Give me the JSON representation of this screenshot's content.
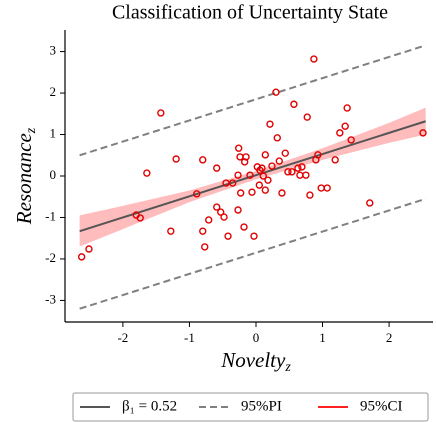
{
  "chart_data": {
    "type": "scatter_regression",
    "title": "Classification of Uncertainty State",
    "xlabel": "Novelty",
    "xlabel_sub": "z",
    "ylabel": "Resonance",
    "ylabel_sub": "z",
    "xlim": [
      -2.87,
      2.66
    ],
    "ylim": [
      -3.52,
      3.52
    ],
    "xticks": [
      -2,
      -1,
      0,
      1,
      2
    ],
    "yticks": [
      -3,
      -2,
      -1,
      0,
      1,
      2,
      3
    ],
    "points": {
      "color": "#e00000",
      "x": [
        -2.62,
        -2.51,
        -1.8,
        -1.74,
        -1.64,
        -1.43,
        -1.28,
        -1.2,
        -0.89,
        -0.8,
        -0.8,
        -0.77,
        -0.71,
        -0.59,
        -0.59,
        -0.53,
        -0.48,
        -0.45,
        -0.42,
        -0.35,
        -0.27,
        -0.27,
        -0.26,
        -0.24,
        -0.23,
        -0.18,
        -0.17,
        -0.15,
        -0.09,
        -0.06,
        -0.03,
        0.02,
        0.05,
        0.06,
        0.09,
        0.11,
        0.14,
        0.14,
        0.18,
        0.21,
        0.24,
        0.3,
        0.32,
        0.35,
        0.39,
        0.44,
        0.48,
        0.54,
        0.57,
        0.63,
        0.66,
        0.69,
        0.75,
        0.77,
        0.81,
        0.87,
        0.9,
        0.93,
        0.98,
        1.07,
        1.19,
        1.26,
        1.34,
        1.37,
        1.43,
        1.71,
        2.51
      ],
      "y": [
        -1.95,
        -1.76,
        -0.94,
        -1.01,
        0.07,
        1.52,
        -1.33,
        0.41,
        -0.43,
        0.39,
        -1.33,
        -1.71,
        -1.06,
        0.19,
        -0.75,
        -0.87,
        -0.99,
        -0.17,
        -1.45,
        -0.17,
        0.02,
        -0.82,
        0.67,
        0.46,
        -0.41,
        -1.23,
        0.34,
        0.46,
        0.02,
        -0.39,
        -1.45,
        0.22,
        -0.22,
        0.14,
        0.19,
        0.0,
        0.51,
        -0.34,
        -0.1,
        1.25,
        0.24,
        2.02,
        0.92,
        0.36,
        -0.41,
        0.55,
        0.1,
        0.1,
        1.73,
        0.19,
        0.02,
        0.22,
        0.02,
        1.42,
        -0.46,
        2.82,
        0.39,
        0.51,
        -0.29,
        -0.29,
        0.39,
        1.04,
        1.2,
        1.64,
        0.87,
        -0.65,
        1.04
      ]
    },
    "fit": {
      "x": [
        -2.65,
        -2,
        -1,
        0,
        1,
        2,
        2.55
      ],
      "line": [
        -1.33,
        -1.0,
        -0.49,
        0.02,
        0.53,
        1.04,
        1.32
      ],
      "ci_upper": [
        -0.95,
        -0.72,
        -0.35,
        0.12,
        0.67,
        1.28,
        1.65
      ],
      "ci_lower": [
        -1.7,
        -1.28,
        -0.63,
        -0.08,
        0.39,
        0.8,
        1.0
      ],
      "pi_upper": [
        0.5,
        0.83,
        1.34,
        1.85,
        2.36,
        2.87,
        3.15
      ],
      "pi_lower": [
        -3.2,
        -2.87,
        -2.36,
        -1.85,
        -1.34,
        -0.83,
        -0.55
      ],
      "line_color": "#555555",
      "pi_color": "#808080",
      "ci_color": "#ff2020"
    },
    "legend": [
      "β₁ = 0.52",
      "95%PI",
      "95%CI"
    ]
  }
}
